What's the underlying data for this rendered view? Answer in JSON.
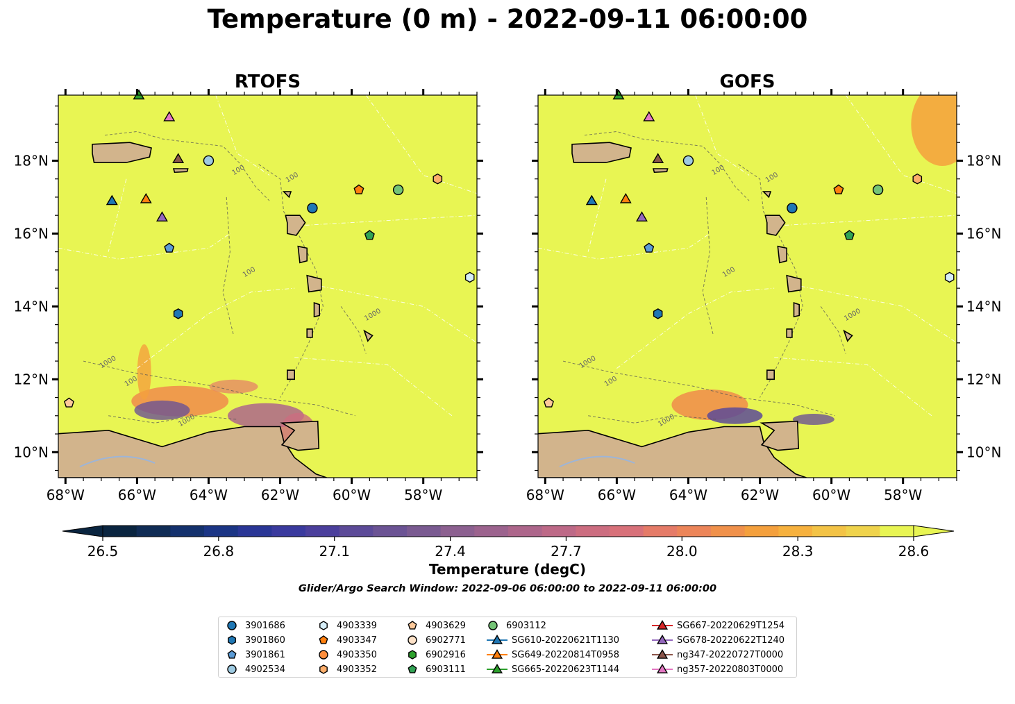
{
  "title": "Temperature (0 m) - 2022-09-11 06:00:00",
  "panels": [
    {
      "title": "RTOFS",
      "model": "rtofs"
    },
    {
      "title": "GOFS",
      "model": "gofs"
    }
  ],
  "lon_ticks": [
    "68°W",
    "66°W",
    "64°W",
    "62°W",
    "60°W",
    "58°W"
  ],
  "lat_ticks": [
    "18°N",
    "16°N",
    "14°N",
    "12°N",
    "10°N"
  ],
  "map_extent": {
    "lon": [
      -68.2,
      -56.5
    ],
    "lat": [
      9.3,
      19.8
    ]
  },
  "contour_labels": [
    "100",
    "1000"
  ],
  "colorbar": {
    "label": "Temperature (degC)",
    "ticks": [
      "26.5",
      "26.8",
      "27.1",
      "27.4",
      "27.7",
      "28.0",
      "28.3",
      "28.6"
    ],
    "range": [
      26.5,
      28.6
    ],
    "extend": "both",
    "colors": [
      "#0a2540",
      "#102c55",
      "#14316d",
      "#1b3585",
      "#2a3696",
      "#3a3a9e",
      "#4b3f9c",
      "#5c4a98",
      "#6b5394",
      "#7a5a91",
      "#8c6090",
      "#9c638e",
      "#ad668b",
      "#bd6987",
      "#cc6d80",
      "#d8717a",
      "#e57b68",
      "#ec8559",
      "#f0914b",
      "#f4a03d",
      "#f6b13e",
      "#f3c346",
      "#efd34c",
      "#e8f553"
    ]
  },
  "search_window_note": "Glider/Argo Search Window: 2022-09-06 06:00:00 to 2022-09-11 06:00:00",
  "legend": [
    {
      "label": "3901686",
      "marker": "circle",
      "color": "#1f77b4",
      "line": false
    },
    {
      "label": "3901860",
      "marker": "hexagon",
      "color": "#1f77b4",
      "line": false
    },
    {
      "label": "3901861",
      "marker": "pentagon",
      "color": "#5b9bd5",
      "line": false
    },
    {
      "label": "4902534",
      "marker": "circle",
      "color": "#9ecae1",
      "line": false
    },
    {
      "label": "4903339",
      "marker": "hexagon",
      "color": "#d6eef8",
      "line": false
    },
    {
      "label": "4903347",
      "marker": "pentagon",
      "color": "#ff7f0e",
      "line": false
    },
    {
      "label": "4903350",
      "marker": "circle",
      "color": "#fd8d3c",
      "line": false
    },
    {
      "label": "4903352",
      "marker": "hexagon",
      "color": "#fdae6b",
      "line": false
    },
    {
      "label": "4903629",
      "marker": "pentagon",
      "color": "#fdc99a",
      "line": false
    },
    {
      "label": "6902771",
      "marker": "circle",
      "color": "#fde2c8",
      "line": false
    },
    {
      "label": "6902916",
      "marker": "hexagon",
      "color": "#2ca02c",
      "line": false
    },
    {
      "label": "6903111",
      "marker": "pentagon",
      "color": "#31a354",
      "line": false
    },
    {
      "label": "6903112",
      "marker": "circle",
      "color": "#74c476",
      "line": false
    },
    {
      "label": "SG610-20220621T1130",
      "marker": "triangle",
      "color": "#1f77b4",
      "line": true
    },
    {
      "label": "SG649-20220814T0958",
      "marker": "triangle",
      "color": "#ff7f0e",
      "line": true
    },
    {
      "label": "SG665-20220623T1144",
      "marker": "triangle",
      "color": "#2ca02c",
      "line": true
    },
    {
      "label": "SG667-20220629T1254",
      "marker": "triangle",
      "color": "#d62728",
      "line": true
    },
    {
      "label": "SG678-20220622T1240",
      "marker": "triangle",
      "color": "#9467bd",
      "line": true
    },
    {
      "label": "ng347-20220727T0000",
      "marker": "triangle",
      "color": "#8c564b",
      "line": true
    },
    {
      "label": "ng357-20220803T0000",
      "marker": "triangle",
      "color": "#e377c2",
      "line": true
    }
  ],
  "observations": [
    {
      "id": "3901686",
      "lon": -61.1,
      "lat": 16.7
    },
    {
      "id": "3901860",
      "lon": -64.85,
      "lat": 13.8
    },
    {
      "id": "3901861",
      "lon": -65.1,
      "lat": 15.6
    },
    {
      "id": "4902534",
      "lon": -64.0,
      "lat": 18.0
    },
    {
      "id": "4903339",
      "lon": -56.7,
      "lat": 14.8
    },
    {
      "id": "4903347",
      "lon": -59.8,
      "lat": 17.2
    },
    {
      "id": "4903352",
      "lon": -57.6,
      "lat": 17.5
    },
    {
      "id": "4903629",
      "lon": -67.9,
      "lat": 11.35
    },
    {
      "id": "6903111",
      "lon": -59.5,
      "lat": 15.95
    },
    {
      "id": "6903112",
      "lon": -58.7,
      "lat": 17.2
    },
    {
      "id": "SG610-20220621T1130",
      "lon": -66.7,
      "lat": 16.9
    },
    {
      "id": "SG649-20220814T0958",
      "lon": -65.75,
      "lat": 16.95
    },
    {
      "id": "SG665-20220623T1144",
      "lon": -65.95,
      "lat": 19.8
    },
    {
      "id": "SG678-20220622T1240",
      "lon": -65.3,
      "lat": 16.45
    },
    {
      "id": "ng347-20220727T0000",
      "lon": -64.85,
      "lat": 18.05
    },
    {
      "id": "ng357-20220803T0000",
      "lon": -65.1,
      "lat": 19.2
    }
  ]
}
